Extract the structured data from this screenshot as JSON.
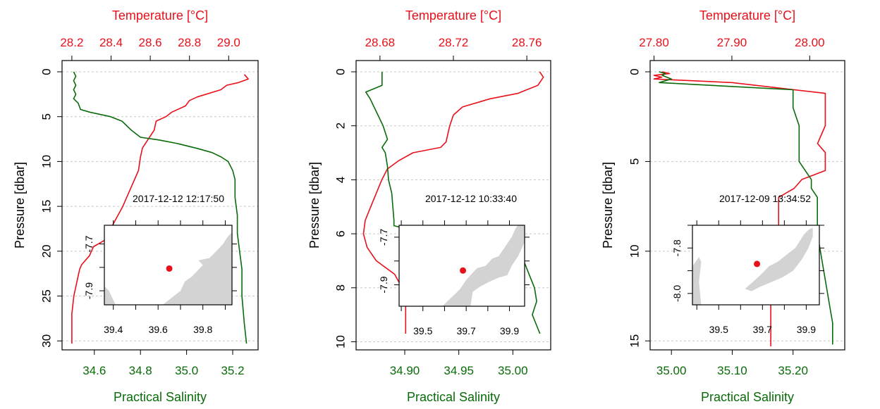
{
  "colors": {
    "temperature": "#e8101a",
    "salinity": "#0a6b0a",
    "land": "#d3d3d3",
    "station": "#e8101a",
    "axis": "#000000",
    "grid": "#c8c8c8"
  },
  "chart_data": [
    {
      "type": "line",
      "ylabel": "Pressure [dbar]",
      "top_axis_label": "Temperature [°C]",
      "bottom_axis_label": "Practical Salinity",
      "timestamp": "2017-12-12 12:17:50",
      "ylim": [
        0,
        31
      ],
      "ygrid": [
        0,
        5,
        10,
        15,
        20,
        25,
        30
      ],
      "yticks": [
        0,
        5,
        10,
        15,
        20,
        25,
        30
      ],
      "ytick_labels": [
        "0",
        "5",
        "10",
        "15",
        "20",
        "25",
        "30"
      ],
      "temp_lim": [
        28.15,
        29.15
      ],
      "temp_ticks": [
        28.2,
        28.4,
        28.6,
        28.8,
        29.0
      ],
      "temp_tick_labels": [
        "28.2",
        "28.4",
        "28.6",
        "28.8",
        "29.0"
      ],
      "sal_lim": [
        34.46,
        35.31
      ],
      "sal_ticks": [
        34.6,
        34.8,
        35.0,
        35.2
      ],
      "sal_tick_labels": [
        "34.6",
        "34.8",
        "35.0",
        "35.2"
      ],
      "temperature": {
        "p": [
          0.3,
          0.8,
          1.2,
          1.5,
          2.0,
          2.8,
          3.2,
          3.8,
          4.5,
          5.0,
          5.5,
          6.5,
          7.5,
          8.5,
          9.5,
          11,
          13,
          15,
          17,
          18.5,
          19.5,
          20.5,
          21.5,
          22.0,
          23,
          25,
          27,
          30.3
        ],
        "v": [
          29.08,
          29.1,
          29.05,
          28.99,
          28.96,
          28.84,
          28.8,
          28.78,
          28.71,
          28.68,
          28.63,
          28.62,
          28.59,
          28.56,
          28.55,
          28.54,
          28.5,
          28.46,
          28.41,
          28.39,
          28.31,
          28.29,
          28.25,
          28.24,
          28.23,
          28.21,
          28.2,
          28.2
        ]
      },
      "salinity": {
        "p": [
          0.0,
          0.5,
          1.0,
          1.5,
          2.0,
          2.5,
          3.0,
          3.5,
          4.2,
          4.5,
          5.0,
          5.5,
          6.0,
          6.5,
          7.3,
          7.6,
          8.0,
          8.5,
          9.0,
          9.5,
          10,
          11,
          12,
          14,
          16,
          18,
          20,
          22,
          25,
          28,
          30.3
        ],
        "v": [
          34.51,
          34.52,
          34.51,
          34.52,
          34.51,
          34.52,
          34.51,
          34.53,
          34.54,
          34.58,
          34.67,
          34.72,
          34.74,
          34.76,
          34.8,
          34.88,
          34.96,
          35.04,
          35.11,
          35.15,
          35.18,
          35.2,
          35.21,
          35.21,
          35.22,
          35.22,
          35.23,
          35.24,
          35.24,
          35.25,
          35.26
        ]
      },
      "inset": {
        "lon_lim": [
          39.36,
          39.93
        ],
        "lat_lim": [
          -7.96,
          -7.62
        ],
        "lon_ticks": [
          39.4,
          39.6,
          39.8
        ],
        "lon_tick_labels": [
          "39.4",
          "39.6",
          "39.8"
        ],
        "lat_ticks": [
          -7.7,
          -7.9
        ],
        "lat_tick_labels": [
          "-7.7",
          "-7.9"
        ],
        "station": [
          39.65,
          -7.805
        ],
        "land": [
          [
            [
              39.36,
              -7.96
            ],
            [
              39.36,
              -7.88
            ],
            [
              39.38,
              -7.9
            ],
            [
              39.4,
              -7.94
            ],
            [
              39.41,
              -7.96
            ]
          ],
          [
            [
              39.62,
              -7.96
            ],
            [
              39.7,
              -7.9
            ],
            [
              39.72,
              -7.86
            ],
            [
              39.75,
              -7.84
            ],
            [
              39.77,
              -7.82
            ],
            [
              39.8,
              -7.79
            ],
            [
              39.78,
              -7.77
            ],
            [
              39.83,
              -7.76
            ],
            [
              39.86,
              -7.73
            ],
            [
              39.89,
              -7.7
            ],
            [
              39.91,
              -7.67
            ],
            [
              39.93,
              -7.65
            ],
            [
              39.93,
              -7.96
            ]
          ]
        ]
      }
    },
    {
      "type": "line",
      "ylabel": "Pressure [dbar]",
      "top_axis_label": "Temperature [°C]",
      "bottom_axis_label": "Practical Salinity",
      "timestamp": "2017-12-12 10:33:40",
      "ylim": [
        0,
        10.3
      ],
      "ygrid": [
        0,
        2,
        4,
        6,
        8,
        10
      ],
      "yticks": [
        0,
        2,
        4,
        6,
        8,
        10
      ],
      "ytick_labels": [
        "0",
        "2",
        "4",
        "6",
        "8",
        "10"
      ],
      "temp_lim": [
        28.667,
        28.773
      ],
      "temp_ticks": [
        28.68,
        28.72,
        28.76
      ],
      "temp_tick_labels": [
        "28.68",
        "28.72",
        "28.76"
      ],
      "sal_lim": [
        34.855,
        35.035
      ],
      "sal_ticks": [
        34.9,
        34.95,
        35.0
      ],
      "sal_tick_labels": [
        "34.90",
        "34.95",
        "35.00"
      ],
      "temperature": {
        "p": [
          0.0,
          0.2,
          0.5,
          0.8,
          1.0,
          1.3,
          1.6,
          2.0,
          2.3,
          2.6,
          2.8,
          3.0,
          3.3,
          3.6,
          4.0,
          4.5,
          5.0,
          5.5,
          6.0,
          6.5,
          7.0,
          7.5,
          8.0,
          8.5,
          9.0,
          9.7
        ],
        "v": [
          28.767,
          28.769,
          28.766,
          28.755,
          28.74,
          28.725,
          28.72,
          28.718,
          28.717,
          28.716,
          28.713,
          28.698,
          28.69,
          28.684,
          28.681,
          28.678,
          28.675,
          28.672,
          28.671,
          28.673,
          28.678,
          28.688,
          28.692,
          28.694,
          28.694,
          28.694
        ]
      },
      "salinity": {
        "p": [
          0.0,
          0.5,
          0.75,
          1.0,
          1.5,
          2.0,
          2.5,
          2.8,
          3.0,
          3.5,
          4.0,
          4.5,
          5.0,
          5.5,
          5.7,
          6.0,
          6.3,
          6.6,
          7.0,
          7.5,
          8.0,
          8.5,
          9.0,
          9.4,
          9.7
        ],
        "v": [
          34.879,
          34.879,
          34.864,
          34.868,
          34.874,
          34.88,
          34.884,
          34.879,
          34.882,
          34.884,
          34.885,
          34.888,
          34.889,
          34.89,
          34.89,
          34.92,
          34.95,
          34.98,
          35.01,
          35.015,
          35.02,
          35.022,
          35.018,
          35.022,
          35.025
        ]
      },
      "inset": {
        "lon_lim": [
          39.39,
          39.97
        ],
        "lat_lim": [
          -7.99,
          -7.65
        ],
        "lon_ticks": [
          39.5,
          39.7,
          39.9
        ],
        "lon_tick_labels": [
          "39.5",
          "39.7",
          "39.9"
        ],
        "lat_ticks": [
          -7.7,
          -7.9
        ],
        "lat_tick_labels": [
          "-7.7",
          "-7.9"
        ],
        "station": [
          39.685,
          -7.84
        ],
        "land": [
          [
            [
              39.59,
              -7.99
            ],
            [
              39.67,
              -7.92
            ],
            [
              39.7,
              -7.88
            ],
            [
              39.73,
              -7.85
            ],
            [
              39.75,
              -7.83
            ],
            [
              39.79,
              -7.82
            ],
            [
              39.82,
              -7.79
            ],
            [
              39.85,
              -7.78
            ],
            [
              39.88,
              -7.74
            ],
            [
              39.91,
              -7.7
            ],
            [
              39.93,
              -7.66
            ],
            [
              39.94,
              -7.65
            ],
            [
              39.97,
              -7.65
            ],
            [
              39.97,
              -7.72
            ],
            [
              39.94,
              -7.78
            ],
            [
              39.91,
              -7.82
            ],
            [
              39.89,
              -7.86
            ],
            [
              39.85,
              -7.87
            ],
            [
              39.8,
              -7.89
            ],
            [
              39.76,
              -7.91
            ],
            [
              39.73,
              -7.93
            ],
            [
              39.72,
              -7.99
            ]
          ]
        ]
      }
    },
    {
      "type": "line",
      "ylabel": "Pressure [dbar]",
      "top_axis_label": "Temperature [°C]",
      "bottom_axis_label": "Practical Salinity",
      "timestamp": "2017-12-09 13:34:52",
      "ylim": [
        0,
        15.5
      ],
      "ygrid": [
        0,
        5,
        10,
        15
      ],
      "yticks": [
        0,
        5,
        10,
        15
      ],
      "ytick_labels": [
        "0",
        "5",
        "10",
        "15"
      ],
      "temp_lim": [
        27.795,
        28.045
      ],
      "temp_ticks": [
        27.8,
        27.9,
        28.0
      ],
      "temp_tick_labels": [
        "27.80",
        "27.90",
        "28.00"
      ],
      "sal_lim": [
        34.965,
        35.285
      ],
      "sal_ticks": [
        35.0,
        35.1,
        35.2
      ],
      "sal_tick_labels": [
        "35.00",
        "35.10",
        "35.20"
      ],
      "temperature": {
        "p": [
          0.0,
          0.1,
          0.2,
          0.3,
          0.4,
          0.6,
          1.2,
          2.0,
          3.0,
          4.0,
          4.5,
          5.0,
          5.5,
          6.0,
          6.5,
          7.0,
          7.5,
          8.0,
          9.0,
          10.0,
          11.0,
          12.0,
          13.0,
          14.0,
          15.3
        ],
        "v": [
          27.81,
          27.82,
          27.8,
          27.81,
          27.8,
          27.9,
          28.02,
          28.02,
          28.02,
          28.01,
          28.02,
          28.02,
          28.02,
          27.99,
          27.98,
          27.96,
          27.96,
          27.96,
          27.96,
          27.96,
          27.95,
          27.95,
          27.95,
          27.95,
          27.95
        ]
      },
      "salinity": {
        "p": [
          0.0,
          0.1,
          0.2,
          0.4,
          0.6,
          1.0,
          1.5,
          2.0,
          3.0,
          4.0,
          5.0,
          5.5,
          6.0,
          6.5,
          7.0,
          8.0,
          9.0,
          10.0,
          11.0,
          12.0,
          13.0,
          14.0,
          15.2
        ],
        "v": [
          34.98,
          34.99,
          34.985,
          35.0,
          34.98,
          35.2,
          35.2,
          35.2,
          35.21,
          35.21,
          35.21,
          35.22,
          35.23,
          35.23,
          35.24,
          35.24,
          35.24,
          35.245,
          35.25,
          35.255,
          35.26,
          35.265,
          35.265
        ]
      },
      "inset": {
        "lon_lim": [
          39.38,
          39.96
        ],
        "lat_lim": [
          -8.05,
          -7.7
        ],
        "lon_ticks": [
          39.5,
          39.7,
          39.9
        ],
        "lon_tick_labels": [
          "39.5",
          "39.7",
          "39.9"
        ],
        "lat_ticks": [
          -7.8,
          -8.0
        ],
        "lat_tick_labels": [
          "-7.8",
          "-8.0"
        ],
        "station": [
          39.675,
          -7.87
        ],
        "land": [
          [
            [
              39.38,
              -8.05
            ],
            [
              39.38,
              -7.88
            ],
            [
              39.41,
              -7.84
            ],
            [
              39.42,
              -7.86
            ],
            [
              39.41,
              -7.95
            ],
            [
              39.42,
              -8.05
            ]
          ],
          [
            [
              39.62,
              -7.98
            ],
            [
              39.69,
              -7.92
            ],
            [
              39.73,
              -7.88
            ],
            [
              39.77,
              -7.86
            ],
            [
              39.81,
              -7.83
            ],
            [
              39.85,
              -7.8
            ],
            [
              39.87,
              -7.77
            ],
            [
              39.89,
              -7.74
            ],
            [
              39.91,
              -7.72
            ],
            [
              39.93,
              -7.71
            ],
            [
              39.93,
              -7.75
            ],
            [
              39.91,
              -7.8
            ],
            [
              39.88,
              -7.85
            ],
            [
              39.84,
              -7.9
            ],
            [
              39.79,
              -7.93
            ],
            [
              39.74,
              -7.95
            ],
            [
              39.69,
              -7.97
            ],
            [
              39.65,
              -7.99
            ]
          ]
        ]
      }
    }
  ]
}
